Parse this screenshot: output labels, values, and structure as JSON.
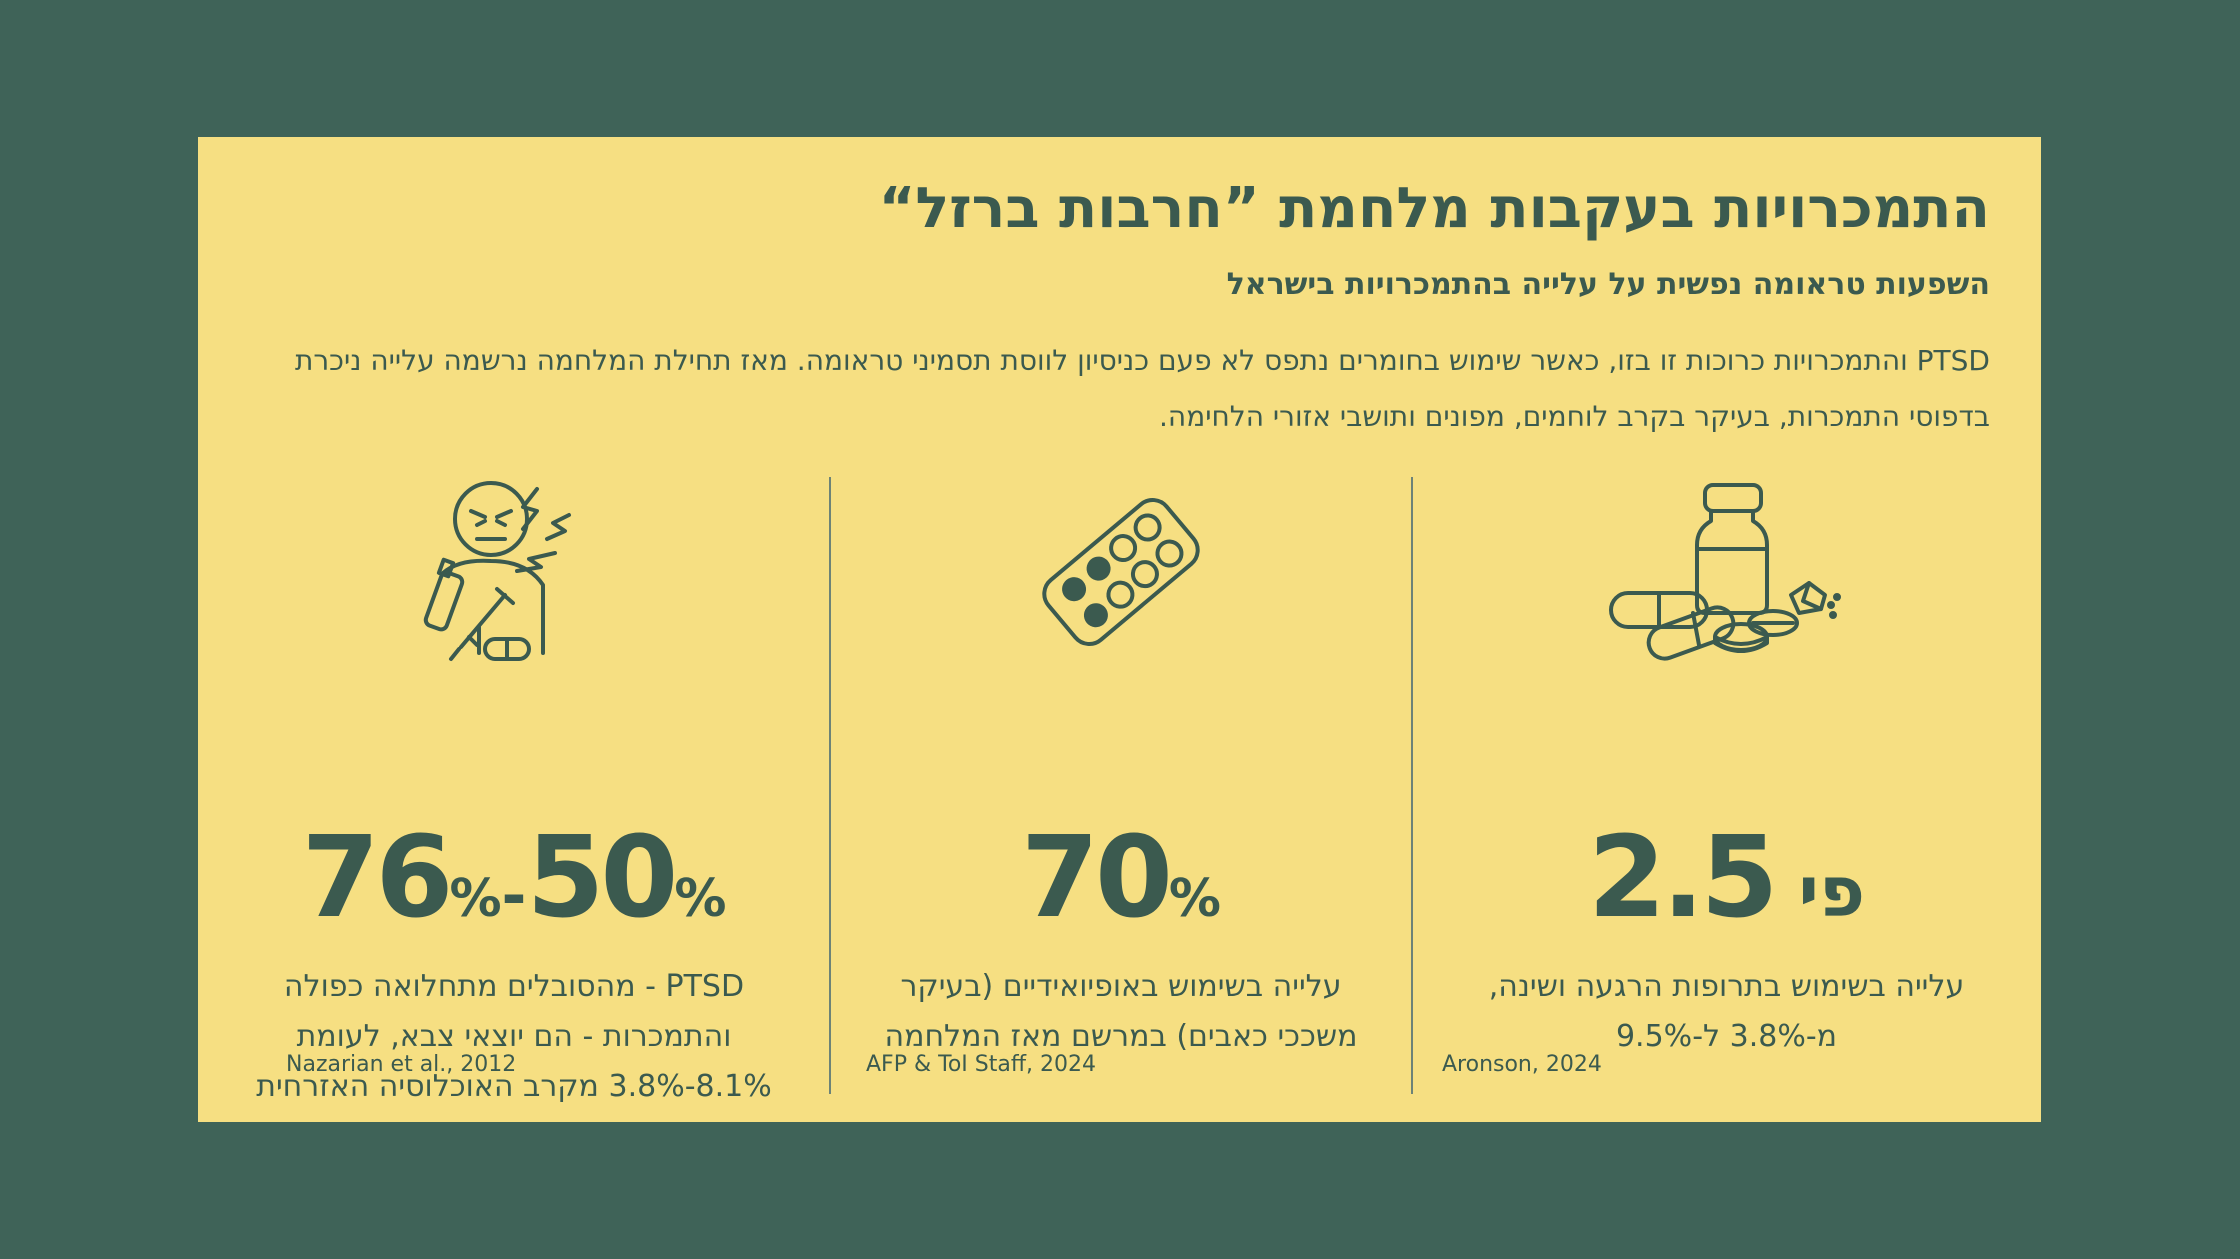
{
  "header": {
    "title": "התמכרויות בעקבות מלחמת ”חרבות ברזל“",
    "subtitle": "השפעות טראומה נפשית על עלייה בהתמכרויות בישראל",
    "paragraph": "PTSD והתמכרויות כרוכות זו בזו, כאשר שימוש בחומרים נתפס לא פעם כניסיון לווסת תסמיני טראומה. מאז תחילת המלחמה נרשמה עלייה ניכרת בדפוסי התמכרות, בעיקר בקרב לוחמים, מפונים ותושבי אזורי הלחימה."
  },
  "stats": [
    {
      "value_a": "76",
      "value_b": "50",
      "percent": "%",
      "dash": "-",
      "description": "PTSD - מהסובלים מתחלואה כפולה והתמכרות - הם יוצאי צבא, לעומת 8.1%-3.8%  מקרב האוכלוסיה האזרחית",
      "source": "Nazarian et al., 2012",
      "icon": "stressed-person-substances-icon"
    },
    {
      "value": "70",
      "percent": "%",
      "description": "עלייה בשימוש באופיואידיים (בעיקר משככי כאבים) במרשם מאז המלחמה",
      "source": "AFP & ToI Staff, 2024",
      "icon": "pill-blister-pack-icon"
    },
    {
      "value": "2.5",
      "prefix": "פי",
      "description": "עלייה בשימוש בתרופות הרגעה ושינה, מ-3.8% ל-9.5%",
      "source": "Aronson, 2024",
      "icon": "pill-bottle-capsules-icon"
    }
  ],
  "colors": {
    "background": "#3f6358",
    "card": "#f6df82",
    "text": "#3b5a4f"
  }
}
